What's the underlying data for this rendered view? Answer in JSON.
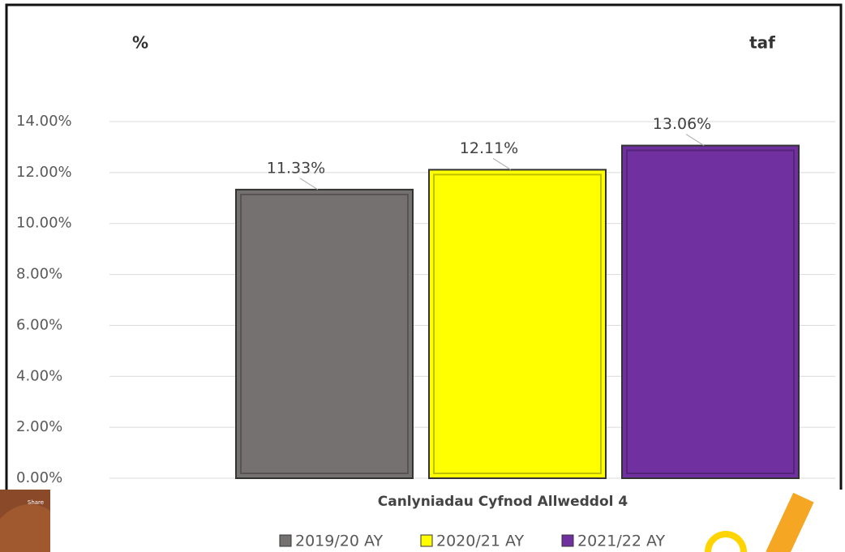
{
  "chart_data": {
    "type": "bar",
    "title_left": "%",
    "title_right": "taf",
    "x_label": "Canlyniadau Cyfnod Allweddol 4",
    "categories": [
      null
    ],
    "series": [
      {
        "name": "2019/20 AY",
        "color": "#767171",
        "values": [
          11.33
        ],
        "value_labels": [
          "11.33%"
        ]
      },
      {
        "name": "2020/21 AY",
        "color": "#ffff00",
        "values": [
          12.11
        ],
        "value_labels": [
          "12.11%"
        ]
      },
      {
        "name": "2021/22 AY",
        "color": "#7030a0",
        "values": [
          13.06
        ],
        "value_labels": [
          "13.06%"
        ]
      }
    ],
    "ylim": [
      0,
      14
    ],
    "yticks": [
      {
        "value": 0,
        "label": "0.00%"
      },
      {
        "value": 2,
        "label": "2.00%"
      },
      {
        "value": 4,
        "label": "4.00%"
      },
      {
        "value": 6,
        "label": "6.00%"
      },
      {
        "value": 8,
        "label": "8.00%"
      },
      {
        "value": 10,
        "label": "10.00%"
      },
      {
        "value": 12,
        "label": "12.00%"
      },
      {
        "value": 14,
        "label": "14.00%"
      }
    ],
    "grid": true,
    "legend": "bottom"
  },
  "overlay": {
    "share_label": "Share"
  }
}
